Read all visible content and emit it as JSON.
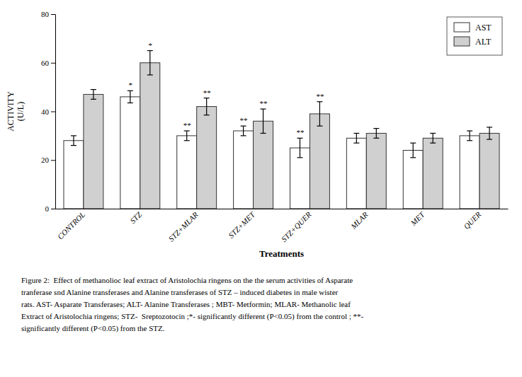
{
  "chart_data": {
    "type": "bar",
    "categories": [
      "CONTROL",
      "STZ",
      "STZ+MLAR",
      "STZ+MET",
      "STZ+QUER",
      "MLAR",
      "MET",
      "QUER"
    ],
    "series": [
      {
        "name": "AST",
        "color": "#ffffff",
        "values": [
          28,
          46,
          30,
          32,
          25,
          29,
          24,
          30
        ],
        "errors": [
          2,
          2.5,
          2,
          2,
          4,
          2,
          3,
          2
        ],
        "significance": [
          null,
          "*",
          "**",
          "**",
          "**",
          null,
          null,
          null
        ]
      },
      {
        "name": "ALT",
        "color": "#d0d0d0",
        "values": [
          47,
          60,
          42,
          36,
          39,
          31,
          29,
          31
        ],
        "errors": [
          2,
          5,
          3.5,
          5,
          5,
          2,
          2,
          2.5
        ],
        "significance": [
          null,
          "*",
          "**",
          "**",
          "**",
          null,
          null,
          null
        ]
      }
    ],
    "ylabel": "ACTIVITY\n(U/L)",
    "xlabel": "Treatments",
    "ylim": [
      0,
      80
    ],
    "yticks": [
      0,
      20,
      40,
      60,
      80
    ],
    "grid": false,
    "legend": "upper right",
    "caption": [
      "Figure 2:  Effect of methanolioc leaf extract of Aristolochia ringens on the the serum activities of Asparate",
      "tranferase snd Alanine transferases and Alanine transferases of STZ – induced diabetes in male wister",
      "rats. AST- Asparate Transferases; ALT- Alanine Transferases ; MBT- Metformin; MLAR- Methanolic leaf",
      "Extract of Aristolochia ringens; STZ-  Sreptozotocin ;*- significantly different (P<0.05) from the control ; **-",
      "significantly different (P<0.05) from the STZ."
    ]
  }
}
